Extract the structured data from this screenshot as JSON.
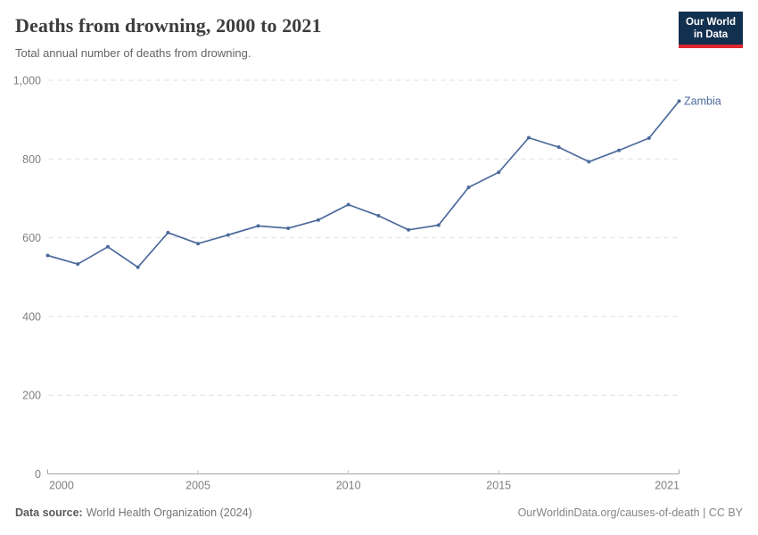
{
  "header": {
    "title": "Deaths from drowning, 2000 to 2021",
    "subtitle": "Total annual number of deaths from drowning.",
    "logo": {
      "line1": "Our World",
      "line2": "in Data"
    }
  },
  "chart_data": {
    "type": "line",
    "title": "Deaths from drowning, 2000 to 2021",
    "xlabel": "",
    "ylabel": "",
    "xlim": [
      2000,
      2021
    ],
    "ylim": [
      0,
      1000
    ],
    "x_ticks": [
      2000,
      2005,
      2010,
      2015,
      2021
    ],
    "y_ticks": [
      0,
      200,
      400,
      600,
      800,
      1000
    ],
    "grid": "horizontal-dashed",
    "legend_position": "end-of-line-label",
    "series": [
      {
        "name": "Zambia",
        "color": "#4C6A9C",
        "x": [
          2000,
          2001,
          2002,
          2003,
          2004,
          2005,
          2006,
          2007,
          2008,
          2009,
          2010,
          2011,
          2012,
          2013,
          2014,
          2015,
          2016,
          2017,
          2018,
          2019,
          2020,
          2021
        ],
        "values": [
          555,
          533,
          577,
          525,
          613,
          585,
          607,
          630,
          624,
          645,
          684,
          656,
          620,
          632,
          728,
          766,
          854,
          830,
          793,
          822,
          853,
          947
        ]
      }
    ]
  },
  "footer": {
    "datasource_label": "Data source:",
    "datasource": "World Health Organization (2024)",
    "link": "OurWorldinData.org/causes-of-death | CC BY"
  },
  "colors": {
    "line": "#4C6A9C",
    "gridline": "#dedede",
    "axis": "#a3a3a3",
    "tick_label": "#7f7f7f",
    "logo_bg": "#12304f",
    "logo_red": "#e0272e"
  }
}
